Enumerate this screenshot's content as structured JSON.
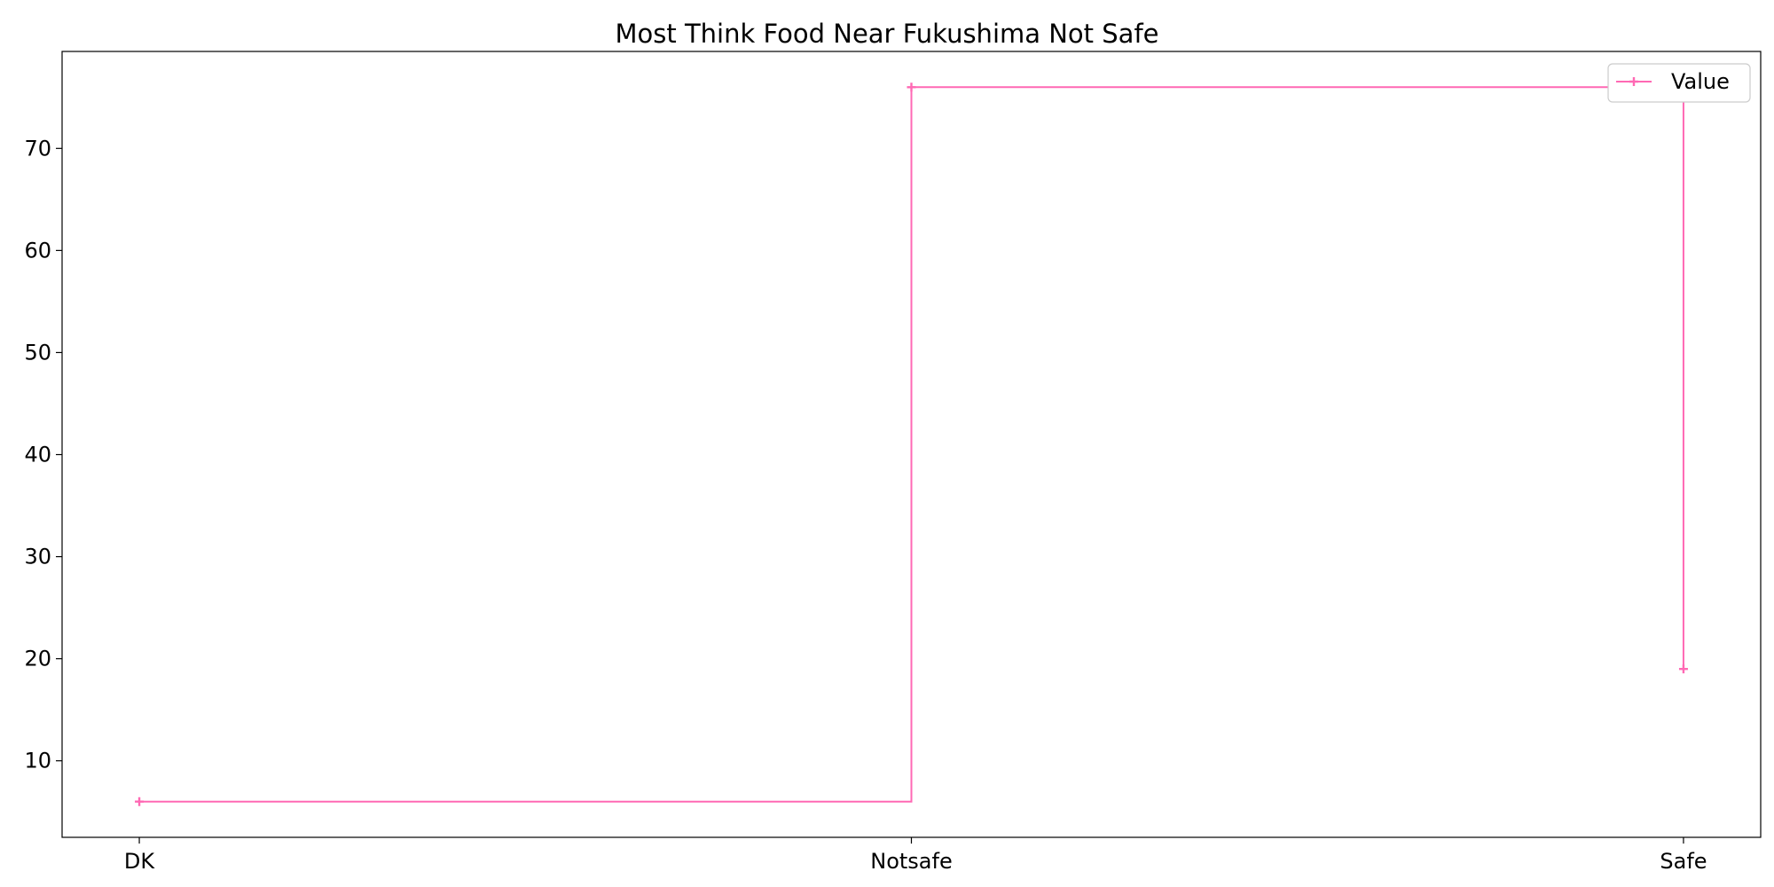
{
  "chart_data": {
    "type": "line",
    "title": "Most Think Food Near Fukushima Not Safe",
    "xlabel": "",
    "ylabel": "",
    "categories": [
      "DK",
      "Notsafe",
      "Safe"
    ],
    "series": [
      {
        "name": "Value",
        "values": [
          6,
          76,
          19
        ],
        "color": "#ff69b4",
        "step": "post",
        "marker": "plus"
      }
    ],
    "ylim": [
      2.5,
      79.5
    ],
    "yticks": [
      10,
      20,
      30,
      40,
      50,
      60,
      70
    ],
    "grid": false,
    "legend_position": "upper right"
  }
}
